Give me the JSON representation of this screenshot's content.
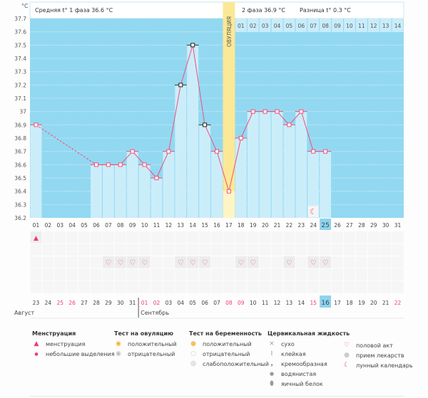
{
  "chart_data": {
    "type": "line",
    "unit_label": "°C",
    "header": {
      "phase1": "Средняя t° 1 фаза 36.6 °C",
      "phase2": "2 фаза 36.9 °C",
      "diff": "Разница t° 0.3 °C"
    },
    "ovulation_label": "ОВУЛЯЦИЯ",
    "ovulation_day": 17,
    "ylim": [
      36.2,
      37.7
    ],
    "yticks": [
      "37.7",
      "37.6",
      "37.5",
      "37.4",
      "37.3",
      "37.2",
      "37.1",
      "37",
      "36.9",
      "36.8",
      "36.7",
      "36.6",
      "36.5",
      "36.4",
      "36.3",
      "36.2"
    ],
    "cycle_days": [
      "01",
      "02",
      "03",
      "04",
      "05",
      "06",
      "07",
      "08",
      "09",
      "10",
      "11",
      "12",
      "13",
      "14",
      "15",
      "16",
      "17",
      "18",
      "19",
      "20",
      "21",
      "22",
      "23",
      "24",
      "25",
      "26",
      "27",
      "28",
      "29",
      "30",
      "31"
    ],
    "phase2_days": [
      "01",
      "02",
      "03",
      "04",
      "05",
      "06",
      "07",
      "08",
      "09",
      "10",
      "11",
      "12",
      "13",
      "14"
    ],
    "temperatures": [
      36.9,
      null,
      null,
      null,
      null,
      36.6,
      36.6,
      36.6,
      36.7,
      36.6,
      36.5,
      36.7,
      37.2,
      37.5,
      36.9,
      36.7,
      36.4,
      36.8,
      37.0,
      37.0,
      37.0,
      36.9,
      37.0,
      36.7,
      36.7,
      null,
      null,
      null,
      null,
      null,
      null
    ],
    "disturbed_days": [
      13,
      14,
      15
    ],
    "today_index": 25,
    "calendar_dates": [
      "23",
      "24",
      "25",
      "26",
      "27",
      "28",
      "29",
      "30",
      "31",
      "01",
      "02",
      "03",
      "04",
      "05",
      "06",
      "07",
      "08",
      "09",
      "10",
      "11",
      "12",
      "13",
      "14",
      "15",
      "16",
      "17",
      "18",
      "19",
      "20",
      "21",
      "22"
    ],
    "weekend_dates_idx": [
      3,
      4,
      10,
      11,
      17,
      18,
      24,
      31
    ],
    "months": [
      "Август",
      "Сентябрь"
    ],
    "menstruation_days": [
      1
    ],
    "intercourse_days": [
      7,
      8,
      9,
      10,
      13,
      14,
      15,
      18,
      19,
      22,
      24,
      25
    ],
    "moon_days": [
      24
    ],
    "colors": {
      "plot_bg": "#93d8f1",
      "bar": "#cbedfa",
      "line": "#f0507a",
      "ovulation": "#fbe896",
      "today": "#8dd3ee"
    }
  },
  "legend": {
    "menstruation": {
      "title": "Менструация",
      "items": [
        "менструация",
        "небольшие выделения"
      ]
    },
    "ovulation_test": {
      "title": "Тест на овуляцию",
      "items": [
        "положительный",
        "отрицательный"
      ]
    },
    "pregnancy_test": {
      "title": "Тест на беременность",
      "items": [
        "положительный",
        "отрицательный",
        "слабоположительный"
      ]
    },
    "cervical": {
      "title": "Цервикальная жидкость",
      "items": [
        "сухо",
        "клейкая",
        "кремообразная",
        "водянистая",
        "яичный белок"
      ]
    },
    "other": {
      "items": [
        "половой акт",
        "прием лекарств",
        "лунный календарь"
      ]
    }
  }
}
